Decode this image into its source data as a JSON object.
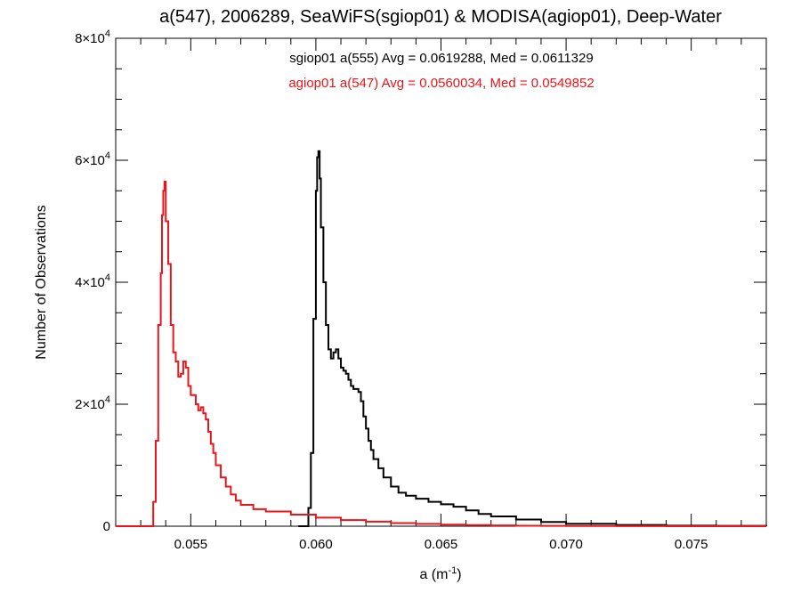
{
  "chart_data": {
    "type": "line",
    "title": "a(547), 2006289, SeaWiFS(sgiop01) & MODISA(agiop01), Deep-Water",
    "xlabel": "a (m",
    "xlabel_exp": "-1",
    "xlabel_close": ")",
    "ylabel": "Number of Observations",
    "xlim": [
      0.052,
      0.078
    ],
    "ylim": [
      0,
      80000
    ],
    "grid": false,
    "xticks": [
      0.055,
      0.06,
      0.065,
      0.07,
      0.075
    ],
    "xtick_labels": [
      "0.055",
      "0.060",
      "0.065",
      "0.070",
      "0.075"
    ],
    "yticks": [
      0,
      20000,
      40000,
      60000,
      80000
    ],
    "ytick_labels": [
      {
        "base": "0",
        "exp": ""
      },
      {
        "base": "2×10",
        "exp": "4"
      },
      {
        "base": "4×10",
        "exp": "4"
      },
      {
        "base": "6×10",
        "exp": "4"
      },
      {
        "base": "8×10",
        "exp": "4"
      }
    ],
    "annotations": [
      {
        "text": "sgiop01 a(555) Avg = 0.0619288, Med = 0.0611329",
        "color": "#000000"
      },
      {
        "text": "agiop01 a(547) Avg = 0.0560034, Med = 0.0549852",
        "color": "#e8161b"
      }
    ],
    "series": [
      {
        "color": "#000000",
        "x": [
          0.0593,
          0.0595,
          0.0596,
          0.0597,
          0.0598,
          0.0599,
          0.06,
          0.06005,
          0.0601,
          0.06015,
          0.0602,
          0.0603,
          0.0604,
          0.0605,
          0.0606,
          0.0607,
          0.0608,
          0.0609,
          0.061,
          0.0611,
          0.0612,
          0.0613,
          0.0614,
          0.0615,
          0.0616,
          0.0617,
          0.0618,
          0.0619,
          0.062,
          0.0621,
          0.0622,
          0.0623,
          0.0625,
          0.0627,
          0.063,
          0.0633,
          0.0636,
          0.064,
          0.0645,
          0.065,
          0.0655,
          0.066,
          0.0665,
          0.067,
          0.068,
          0.069,
          0.07,
          0.072,
          0.074,
          0.076,
          0.078
        ],
        "y": [
          0,
          0,
          0,
          3000,
          12000,
          34000,
          55000,
          60500,
          61500,
          57000,
          49000,
          40000,
          33000,
          29000,
          27500,
          28500,
          29000,
          27500,
          26000,
          25500,
          25000,
          24000,
          23000,
          22500,
          22500,
          22000,
          20500,
          18000,
          16000,
          14000,
          12500,
          11000,
          9500,
          8000,
          6500,
          5500,
          5000,
          4500,
          4000,
          3600,
          3200,
          2600,
          2000,
          1600,
          1100,
          700,
          400,
          200,
          100,
          50,
          30
        ]
      },
      {
        "color": "#e8161b",
        "x": [
          0.052,
          0.0534,
          0.0535,
          0.0536,
          0.0537,
          0.0538,
          0.05385,
          0.0539,
          0.05395,
          0.054,
          0.0541,
          0.0542,
          0.0543,
          0.0544,
          0.0545,
          0.0546,
          0.0547,
          0.0548,
          0.0549,
          0.055,
          0.0551,
          0.0552,
          0.0553,
          0.0554,
          0.0555,
          0.0556,
          0.0557,
          0.0558,
          0.0559,
          0.056,
          0.0562,
          0.0564,
          0.0566,
          0.0568,
          0.057,
          0.0575,
          0.058,
          0.059,
          0.06,
          0.061,
          0.062,
          0.063,
          0.064,
          0.065,
          0.066,
          0.067,
          0.068,
          0.069,
          0.07,
          0.072,
          0.074,
          0.076,
          0.078
        ],
        "y": [
          0,
          0,
          4000,
          14000,
          33000,
          41500,
          51000,
          55000,
          56500,
          50000,
          43000,
          33000,
          28500,
          27000,
          24500,
          25000,
          27000,
          26000,
          23000,
          21500,
          21500,
          20000,
          19000,
          19500,
          18500,
          17500,
          15500,
          13500,
          12000,
          10000,
          8000,
          6500,
          5200,
          4200,
          3500,
          2800,
          2400,
          1900,
          1400,
          1000,
          750,
          520,
          380,
          260,
          180,
          120,
          80,
          50,
          30,
          15,
          5,
          0,
          0
        ]
      }
    ]
  }
}
